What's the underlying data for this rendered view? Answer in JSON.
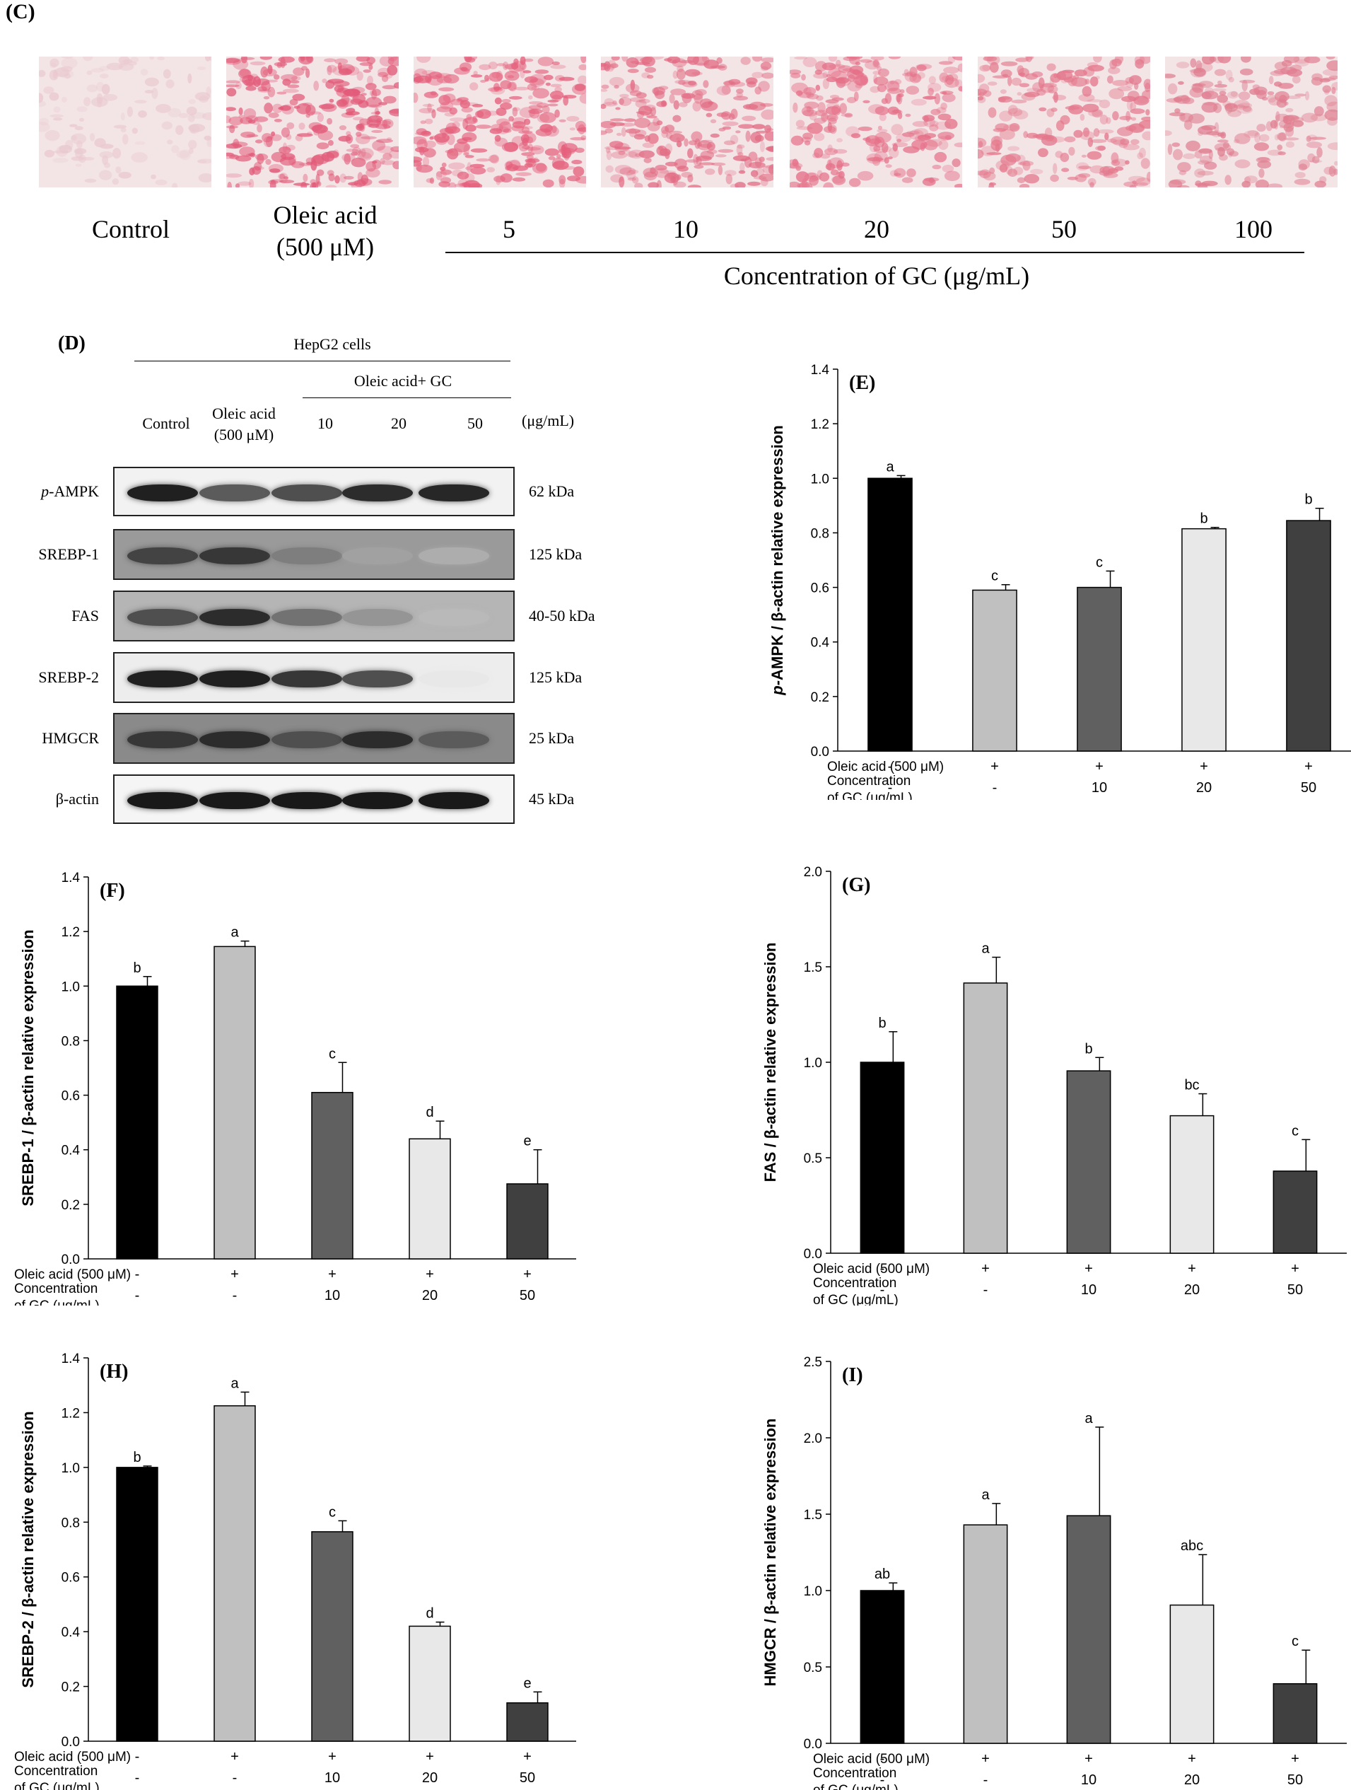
{
  "panel_c": {
    "label": "(C)",
    "images": [
      {
        "name": "Control",
        "tint": "#e9c9cf",
        "density": 0.25
      },
      {
        "name": "Oleic acid",
        "tint": "#e25a78",
        "density": 0.9
      },
      {
        "name": "5",
        "tint": "#e5607c",
        "density": 0.85
      },
      {
        "name": "10",
        "tint": "#e26a82",
        "density": 0.8
      },
      {
        "name": "20",
        "tint": "#e57088",
        "density": 0.75
      },
      {
        "name": "50",
        "tint": "#e4788c",
        "density": 0.65
      },
      {
        "name": "100",
        "tint": "#e07e90",
        "density": 0.6
      }
    ],
    "labels": {
      "control": "Control",
      "oleic_line1": "Oleic acid",
      "oleic_line2": "(500 μM)",
      "c5": "5",
      "c10": "10",
      "c20": "20",
      "c50": "50",
      "c100": "100",
      "concentration": "Concentration of GC (μg/mL)"
    }
  },
  "panel_d": {
    "label": "(D)",
    "cells": "HepG2 cells",
    "treatment": "Oleic acid+ GC",
    "columns": {
      "control": "Control",
      "oleic_line1": "Oleic acid",
      "oleic_line2": "(500 μM)",
      "c10": "10",
      "c20": "20",
      "c50": "50",
      "unit": "(μg/mL)"
    },
    "rows": [
      {
        "protein_prefix": "p-",
        "protein": "AMPK",
        "kda": "62 kDa",
        "intensity": [
          0.95,
          0.7,
          0.75,
          0.9,
          0.92
        ],
        "bg": "#f2f2f2"
      },
      {
        "protein_prefix": "",
        "protein": "SREBP-1",
        "kda": "125 kDa",
        "intensity": [
          0.8,
          0.85,
          0.55,
          0.4,
          0.35
        ],
        "bg": "#9a9a9a"
      },
      {
        "protein_prefix": "",
        "protein": "FAS",
        "kda": "40-50 kDa",
        "intensity": [
          0.75,
          0.9,
          0.6,
          0.45,
          0.3
        ],
        "bg": "#b5b5b5"
      },
      {
        "protein_prefix": "",
        "protein": "SREBP-2",
        "kda": "125 kDa",
        "intensity": [
          0.95,
          0.95,
          0.85,
          0.75,
          0.1
        ],
        "bg": "#ededed"
      },
      {
        "protein_prefix": "",
        "protein": "HMGCR",
        "kda": "25 kDa",
        "intensity": [
          0.85,
          0.9,
          0.75,
          0.9,
          0.7
        ],
        "bg": "#8a8a8a"
      },
      {
        "protein_prefix": "",
        "protein": "β-actin",
        "kda": "45 kDa",
        "intensity": [
          0.98,
          0.98,
          0.98,
          0.98,
          0.98
        ],
        "bg": "#f5f5f5"
      }
    ]
  },
  "chart_data": [
    {
      "panel": "(E)",
      "type": "bar",
      "ylabel_italic": "p-",
      "ylabel": "AMPK / β-actin relative expression",
      "ylim": [
        0,
        1.4
      ],
      "ticks": [
        "0.0",
        "0.2",
        "0.4",
        "0.6",
        "0.8",
        "1.0",
        "1.2",
        "1.4"
      ],
      "categories": [
        "Control",
        "Oleic acid",
        "GC 10",
        "GC 20",
        "GC 50"
      ],
      "values": [
        1.0,
        0.59,
        0.6,
        0.815,
        0.845
      ],
      "errors": [
        0.01,
        0.02,
        0.06,
        0.005,
        0.045
      ],
      "letters": [
        "a",
        "c",
        "c",
        "b",
        "b"
      ],
      "colors": [
        "#000000",
        "#c0c0c0",
        "#606060",
        "#e8e8e8",
        "#404040"
      ]
    },
    {
      "panel": "(F)",
      "type": "bar",
      "ylabel_italic": "",
      "ylabel": "SREBP-1 / β-actin relative expression",
      "ylim": [
        0,
        1.4
      ],
      "ticks": [
        "0.0",
        "0.2",
        "0.4",
        "0.6",
        "0.8",
        "1.0",
        "1.2",
        "1.4"
      ],
      "categories": [
        "Control",
        "Oleic acid",
        "GC 10",
        "GC 20",
        "GC 50"
      ],
      "values": [
        1.0,
        1.145,
        0.61,
        0.44,
        0.275
      ],
      "errors": [
        0.035,
        0.02,
        0.11,
        0.065,
        0.125
      ],
      "letters": [
        "b",
        "a",
        "c",
        "d",
        "e"
      ],
      "colors": [
        "#000000",
        "#c0c0c0",
        "#606060",
        "#e8e8e8",
        "#404040"
      ]
    },
    {
      "panel": "(G)",
      "type": "bar",
      "ylabel_italic": "",
      "ylabel": "FAS / β-actin relative expression",
      "ylim": [
        0,
        2.0
      ],
      "ticks": [
        "0.0",
        "0.5",
        "1.0",
        "1.5",
        "2.0"
      ],
      "categories": [
        "Control",
        "Oleic acid",
        "GC 10",
        "GC 20",
        "GC 50"
      ],
      "values": [
        1.0,
        1.415,
        0.955,
        0.72,
        0.43
      ],
      "errors": [
        0.16,
        0.135,
        0.07,
        0.115,
        0.165
      ],
      "letters": [
        "b",
        "a",
        "b",
        "bc",
        "c"
      ],
      "colors": [
        "#000000",
        "#c0c0c0",
        "#606060",
        "#e8e8e8",
        "#404040"
      ]
    },
    {
      "panel": "(H)",
      "type": "bar",
      "ylabel_italic": "",
      "ylabel": "SREBP-2 / β-actin relative expression",
      "ylim": [
        0,
        1.4
      ],
      "ticks": [
        "0.0",
        "0.2",
        "0.4",
        "0.6",
        "0.8",
        "1.0",
        "1.2",
        "1.4"
      ],
      "categories": [
        "Control",
        "Oleic acid",
        "GC 10",
        "GC 20",
        "GC 50"
      ],
      "values": [
        1.0,
        1.225,
        0.765,
        0.42,
        0.14
      ],
      "errors": [
        0.005,
        0.05,
        0.04,
        0.015,
        0.04
      ],
      "letters": [
        "b",
        "a",
        "c",
        "d",
        "e"
      ],
      "colors": [
        "#000000",
        "#c0c0c0",
        "#606060",
        "#e8e8e8",
        "#404040"
      ]
    },
    {
      "panel": "(I)",
      "type": "bar",
      "ylabel_italic": "",
      "ylabel": "HMGCR / β-actin relative expression",
      "ylim": [
        0,
        2.5
      ],
      "ticks": [
        "0.0",
        "0.5",
        "1.0",
        "1.5",
        "2.0",
        "2.5"
      ],
      "categories": [
        "Control",
        "Oleic acid",
        "GC 10",
        "GC 20",
        "GC 50"
      ],
      "values": [
        1.0,
        1.43,
        1.49,
        0.905,
        0.39
      ],
      "errors": [
        0.05,
        0.14,
        0.58,
        0.33,
        0.22
      ],
      "letters": [
        "ab",
        "a",
        "a",
        "abc",
        "c"
      ],
      "colors": [
        "#000000",
        "#c0c0c0",
        "#606060",
        "#e8e8e8",
        "#404040"
      ]
    }
  ],
  "xtable": {
    "row1_label": "Oleic  acid (500 μM)",
    "row2_label_line1": "Concentration",
    "row2_label_line2": "of GC (μg/mL)",
    "row1": [
      "-",
      "+",
      "+",
      "+",
      "+"
    ],
    "row2": [
      "-",
      "-",
      "10",
      "20",
      "50"
    ]
  }
}
